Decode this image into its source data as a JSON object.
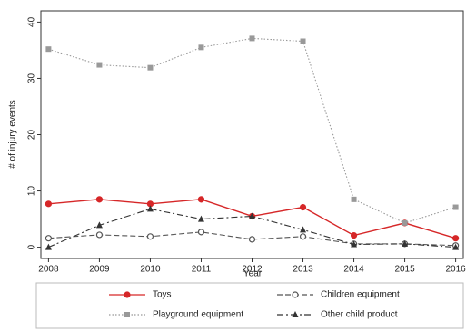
{
  "chart_data": {
    "type": "line",
    "x_label": "Year",
    "y_label": "# of injury events",
    "x": [
      2008,
      2009,
      2010,
      2011,
      2012,
      2013,
      2014,
      2015,
      2016
    ],
    "xlim": [
      2007.85,
      2016.15
    ],
    "xticks": [
      2008,
      2009,
      2010,
      2011,
      2012,
      2013,
      2014,
      2015,
      2016
    ],
    "ylim": [
      -2,
      42
    ],
    "yticks": [
      0,
      10,
      20,
      30,
      40
    ],
    "grid": false,
    "series": [
      {
        "name": "Toys",
        "color": "#d62728",
        "dash": "solid",
        "marker": "circle",
        "values": [
          7.7,
          8.5,
          7.7,
          8.5,
          5.5,
          7.1,
          2.1,
          4.3,
          1.6
        ]
      },
      {
        "name": "Children equipment",
        "color": "#555555",
        "dash": "dashed",
        "marker": "open-circle",
        "values": [
          1.6,
          2.2,
          1.9,
          2.7,
          1.4,
          1.9,
          0.6,
          0.6,
          0.3
        ]
      },
      {
        "name": "Playground equipment",
        "color": "#999999",
        "dash": "dotted",
        "marker": "square",
        "values": [
          35.2,
          32.4,
          31.9,
          35.5,
          37.1,
          36.6,
          8.5,
          4.3,
          7.1
        ]
      },
      {
        "name": "Other child product",
        "color": "#333333",
        "dash": "dashdot",
        "marker": "triangle",
        "values": [
          0,
          3.9,
          6.8,
          5.0,
          5.5,
          3.1,
          0.5,
          0.6,
          0
        ]
      }
    ]
  }
}
